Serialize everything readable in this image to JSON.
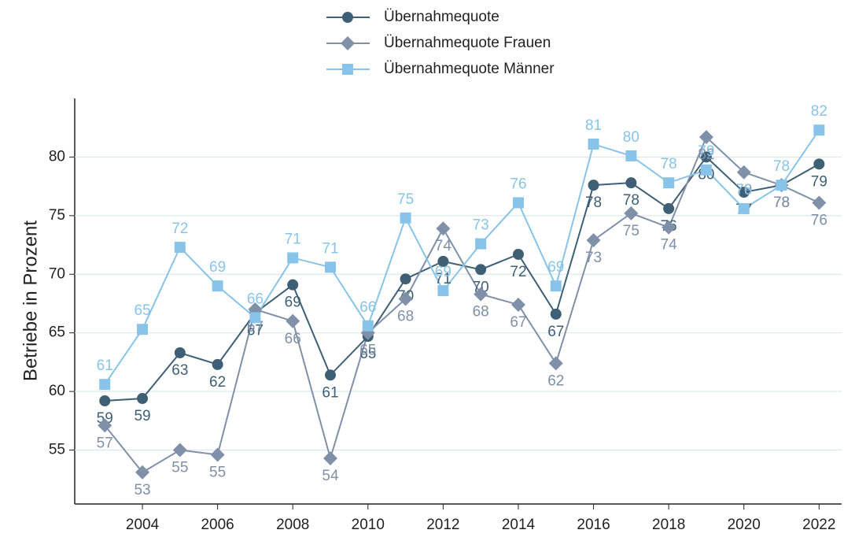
{
  "chart_data": {
    "type": "line",
    "y_label": "Betriebe in Prozent",
    "x": [
      2003,
      2004,
      2005,
      2006,
      2007,
      2008,
      2009,
      2010,
      2011,
      2012,
      2013,
      2014,
      2015,
      2016,
      2017,
      2018,
      2019,
      2020,
      2021,
      2022
    ],
    "xlim": [
      2002.2,
      2022.6
    ],
    "xticks": [
      2004,
      2006,
      2008,
      2010,
      2012,
      2014,
      2016,
      2018,
      2020,
      2022
    ],
    "ylim": [
      50.4,
      85
    ],
    "yticks": [
      55,
      60,
      65,
      70,
      75,
      80
    ],
    "grid": true,
    "legend": "top",
    "series": [
      {
        "name": "Übernahmequote",
        "color": "#3e5f75",
        "marker": "circle",
        "values": [
          59.2,
          59.4,
          63.3,
          62.3,
          66.7,
          69.1,
          61.4,
          64.7,
          69.6,
          71.1,
          70.4,
          71.7,
          66.6,
          77.6,
          77.8,
          75.6,
          80.0,
          77.0,
          77.6,
          79.4
        ],
        "value_labels": [
          "59",
          "59",
          "63",
          "62",
          "67",
          "69",
          "61",
          "65",
          "70",
          "71",
          "70",
          "72",
          "67",
          "78",
          "78",
          "76",
          "80",
          "77",
          "78",
          "79"
        ]
      },
      {
        "name": "Übernahmequote Frauen",
        "color": "#8090a8",
        "marker": "diamond",
        "values": [
          57.1,
          53.1,
          55.0,
          54.6,
          67.0,
          66.0,
          54.3,
          65.0,
          67.9,
          73.9,
          68.3,
          67.4,
          62.4,
          72.9,
          75.2,
          74.0,
          81.7,
          78.7,
          77.6,
          76.1
        ],
        "value_labels": [
          "57",
          "53",
          "55",
          "55",
          "67",
          "66",
          "54",
          "65",
          "68",
          "74",
          "68",
          "67",
          "62",
          "73",
          "75",
          "74",
          "82",
          "79",
          "78",
          "76"
        ]
      },
      {
        "name": "Übernahmequote Männer",
        "color": "#88c4ea",
        "marker": "square",
        "values": [
          60.6,
          65.3,
          72.3,
          69.0,
          66.3,
          71.4,
          70.6,
          65.6,
          74.8,
          68.6,
          72.6,
          76.1,
          69.0,
          81.1,
          80.1,
          77.8,
          78.9,
          75.6,
          77.6,
          82.3
        ],
        "value_labels": [
          "61",
          "65",
          "72",
          "69",
          "66",
          "71",
          "71",
          "66",
          "75",
          "69",
          "73",
          "76",
          "69",
          "81",
          "80",
          "78",
          "79",
          "76",
          "78",
          "82"
        ]
      }
    ]
  }
}
